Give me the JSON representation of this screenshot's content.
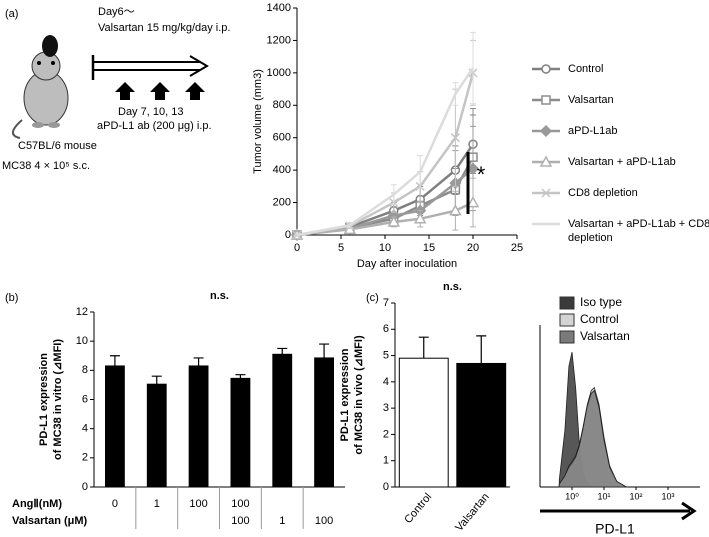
{
  "panel_labels": [
    "(a)",
    "(b)",
    "(c)"
  ],
  "schematic": {
    "treatment_start": "Day6〜",
    "treatment": "Valsartan 15 mg/kg/day i.p.",
    "antibody_days": "Day 7, 10, 13",
    "antibody": "aPD-L1 ab (200 μg) i.p.",
    "mouse": "C57BL/6 mouse",
    "tumor": "MC38  4 × 10⁵ s.c."
  },
  "chart_data": [
    {
      "type": "line",
      "xlabel": "Day after inoculation",
      "ylabel": "Tumor volume (mm3)",
      "x": [
        0,
        6,
        11,
        14,
        18,
        20
      ],
      "xlim": [
        0,
        25
      ],
      "xticks": [
        0,
        5,
        10,
        15,
        20,
        25
      ],
      "ylim": [
        0,
        1400
      ],
      "yticks": [
        0,
        200,
        400,
        600,
        800,
        1000,
        1200,
        1400
      ],
      "annotation": "*",
      "series": [
        {
          "name": "Control",
          "color": "#808080",
          "marker": "circle",
          "values": [
            0,
            50,
            150,
            220,
            400,
            560
          ],
          "errors": [
            0,
            10,
            50,
            80,
            150,
            180
          ]
        },
        {
          "name": "Valsartan",
          "color": "#8c8c8c",
          "marker": "square",
          "values": [
            0,
            45,
            100,
            180,
            280,
            480
          ],
          "errors": [
            0,
            10,
            40,
            60,
            130,
            300
          ]
        },
        {
          "name": "aPD-L1ab",
          "color": "#999999",
          "marker": "diamond",
          "values": [
            0,
            40,
            120,
            150,
            320,
            410
          ],
          "errors": [
            0,
            10,
            50,
            60,
            200,
            260
          ]
        },
        {
          "name": "Valsartan + aPD-L1ab",
          "color": "#b0b0b0",
          "marker": "triangle",
          "values": [
            0,
            35,
            80,
            100,
            150,
            200
          ],
          "errors": [
            0,
            10,
            30,
            50,
            120,
            150
          ]
        },
        {
          "name": "CD8 depletion",
          "color": "#c4c4c4",
          "marker": "x",
          "values": [
            0,
            55,
            200,
            300,
            600,
            1000
          ],
          "errors": [
            0,
            15,
            60,
            90,
            300,
            200
          ]
        },
        {
          "name": "Valsartan + aPD-L1ab + CD8 depletion",
          "color": "#dcdcdc",
          "marker": "none",
          "values": [
            0,
            60,
            250,
            390,
            870,
            1030
          ],
          "errors": [
            0,
            15,
            60,
            100,
            70,
            220
          ]
        }
      ]
    },
    {
      "type": "bar",
      "title": "n.s.",
      "ylabel": [
        "PD-L1 expression",
        "of MC38 in vitro (⊿MFI)"
      ],
      "color": "#000000",
      "values": [
        8.3,
        7.05,
        8.3,
        7.45,
        9.1,
        8.85
      ],
      "errors": [
        0.7,
        0.55,
        0.55,
        0.25,
        0.4,
        0.95
      ],
      "ylim": [
        0,
        12
      ],
      "yticks": [
        0,
        2,
        4,
        6,
        8,
        10,
        12
      ],
      "condition_table": [
        {
          "label": "AngⅡ(nM)",
          "cells": [
            0,
            1,
            100,
            100,
            null,
            null
          ]
        },
        {
          "label": "Valsartan (μM)",
          "cells": [
            null,
            null,
            null,
            100,
            1,
            100
          ]
        }
      ]
    },
    {
      "type": "bar",
      "title": "n.s.",
      "ylabel": [
        "PD-L1 expression",
        "of MC38 in vivo (⊿MFI)"
      ],
      "categories": [
        "Control",
        "Valsartan"
      ],
      "colors": [
        "#ffffff",
        "#000000"
      ],
      "values": [
        4.9,
        4.7
      ],
      "errors": [
        0.8,
        1.05
      ],
      "ylim": [
        0,
        7
      ],
      "yticks": [
        0,
        1,
        2,
        3,
        4,
        5,
        6,
        7
      ]
    },
    {
      "type": "area",
      "xlabel": "PD-L1",
      "log_x": true,
      "x": [
        0.4,
        0.6,
        0.8,
        1,
        1.3,
        1.7,
        2.2,
        3,
        4,
        5,
        7,
        10,
        15,
        25,
        50
      ],
      "xlim": [
        0.1,
        10000
      ],
      "xticks": [
        {
          "value": 1,
          "label": "10⁰"
        },
        {
          "value": 10,
          "label": "10¹"
        },
        {
          "value": 100,
          "label": "10²"
        },
        {
          "value": 1000,
          "label": "10³"
        }
      ],
      "ylim": [
        0,
        100
      ],
      "series": [
        {
          "name": "Iso type",
          "color": "#3a3a3a",
          "values": [
            5,
            40,
            85,
            95,
            70,
            30,
            10,
            3,
            1,
            0,
            0,
            0,
            0,
            0,
            0
          ]
        },
        {
          "name": "Control",
          "color": "#d4d4d4",
          "values": [
            2,
            8,
            15,
            18,
            22,
            30,
            42,
            58,
            68,
            70,
            58,
            35,
            15,
            4,
            0
          ]
        },
        {
          "name": "Valsartan",
          "color": "#7a7a7a",
          "values": [
            2,
            8,
            14,
            17,
            21,
            29,
            41,
            57,
            66,
            68,
            56,
            33,
            14,
            4,
            0
          ]
        }
      ]
    }
  ]
}
